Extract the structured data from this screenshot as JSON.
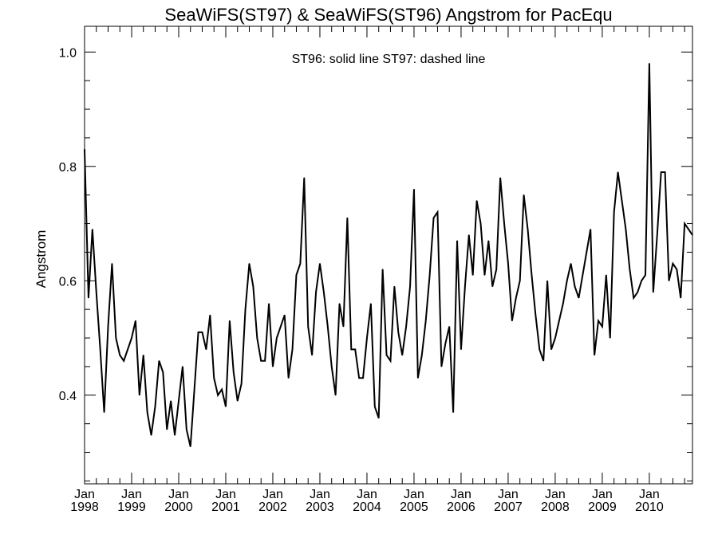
{
  "chart_data": {
    "type": "line",
    "title": "SeaWiFS(ST97) & SeaWiFS(ST96)  Angstrom for PacEqu",
    "annotation": "ST96: solid line   ST97: dashed line",
    "xlabel": "",
    "ylabel": "Angstrom",
    "xlim": [
      "1998-01",
      "2010-12"
    ],
    "ylim": [
      0.245,
      1.045
    ],
    "grid": false,
    "yticks": [
      {
        "value": 0.4,
        "label": "0.4"
      },
      {
        "value": 0.6,
        "label": "0.6"
      },
      {
        "value": 0.8,
        "label": "0.8"
      },
      {
        "value": 1.0,
        "label": "1.0"
      }
    ],
    "xticks": [
      {
        "date": "1998-01",
        "month": "Jan",
        "year": "1998"
      },
      {
        "date": "1999-01",
        "month": "Jan",
        "year": "1999"
      },
      {
        "date": "2000-01",
        "month": "Jan",
        "year": "2000"
      },
      {
        "date": "2001-01",
        "month": "Jan",
        "year": "2001"
      },
      {
        "date": "2002-01",
        "month": "Jan",
        "year": "2002"
      },
      {
        "date": "2003-01",
        "month": "Jan",
        "year": "2003"
      },
      {
        "date": "2004-01",
        "month": "Jan",
        "year": "2004"
      },
      {
        "date": "2005-01",
        "month": "Jan",
        "year": "2005"
      },
      {
        "date": "2006-01",
        "month": "Jan",
        "year": "2006"
      },
      {
        "date": "2007-01",
        "month": "Jan",
        "year": "2007"
      },
      {
        "date": "2008-01",
        "month": "Jan",
        "year": "2008"
      },
      {
        "date": "2009-01",
        "month": "Jan",
        "year": "2009"
      },
      {
        "date": "2010-01",
        "month": "Jan",
        "year": "2010"
      }
    ],
    "series": [
      {
        "name": "ST96",
        "style": "solid",
        "color": "#000000",
        "start": "1998-01",
        "values": [
          0.83,
          0.57,
          0.69,
          0.58,
          0.48,
          0.37,
          0.52,
          0.63,
          0.5,
          0.47,
          0.46,
          0.48,
          0.5,
          0.53,
          0.4,
          0.47,
          0.37,
          0.33,
          0.38,
          0.46,
          0.44,
          0.34,
          0.39,
          0.33,
          0.39,
          0.45,
          0.34,
          0.31,
          0.41,
          0.51,
          0.51,
          0.48,
          0.54,
          0.43,
          0.4,
          0.41,
          0.38,
          0.53,
          0.44,
          0.39,
          0.42,
          0.55,
          0.63,
          0.59,
          0.5,
          0.46,
          0.46,
          0.56,
          0.45,
          0.5,
          0.52,
          0.54,
          0.43,
          0.48,
          0.61,
          0.63,
          0.78,
          0.52,
          0.47,
          0.58,
          0.63,
          0.58,
          0.52,
          0.45,
          0.4,
          0.56,
          0.52,
          0.71,
          0.48,
          0.48,
          0.43,
          0.43,
          0.5,
          0.56,
          0.38,
          0.36,
          0.62,
          0.47,
          0.46,
          0.59,
          0.51,
          0.47,
          0.52,
          0.59,
          0.76,
          0.43,
          0.47,
          0.53,
          0.61,
          0.71,
          0.72,
          0.45,
          0.49,
          0.52,
          0.37,
          0.67,
          0.48,
          0.59,
          0.68,
          0.61,
          0.74,
          0.7,
          0.61,
          0.67,
          0.59,
          0.62,
          0.78,
          0.7,
          0.63,
          0.53,
          0.57,
          0.6,
          0.75,
          0.69,
          0.61,
          0.54,
          0.48,
          0.46,
          0.6,
          0.48,
          0.5,
          0.53,
          0.56,
          0.6,
          0.63,
          0.59,
          0.57,
          0.61,
          0.65,
          0.69,
          0.47,
          0.53,
          0.52,
          0.61,
          0.5,
          0.72,
          0.79,
          0.74,
          0.69,
          0.62,
          0.57,
          0.58,
          0.6,
          0.61,
          0.98,
          0.58,
          0.68,
          0.79,
          0.79,
          0.6,
          0.63,
          0.62,
          0.57,
          0.7,
          0.69,
          0.68
        ]
      }
    ]
  }
}
